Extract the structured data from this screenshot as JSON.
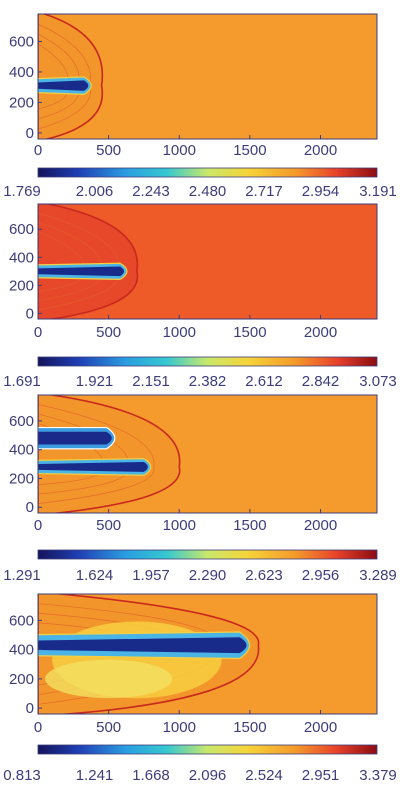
{
  "chart_data": [
    {
      "type": "heatmap",
      "panel": 1,
      "x_ticks": [
        "0",
        "500",
        "1000",
        "1500",
        "2000"
      ],
      "y_ticks": [
        "0",
        "200",
        "400",
        "600"
      ],
      "xlim": [
        0,
        2400
      ],
      "ylim": [
        -40,
        780
      ],
      "colorbar_ticks": [
        "1.769",
        "2.006",
        "2.243",
        "2.480",
        "2.717",
        "2.954",
        "3.191"
      ],
      "background_color": "#f59a2c",
      "jet": {
        "x_tip": 400,
        "y_center": 310
      },
      "shock_front_x": 450
    },
    {
      "type": "heatmap",
      "panel": 2,
      "x_ticks": [
        "0",
        "500",
        "1000",
        "1500",
        "2000"
      ],
      "y_ticks": [
        "0",
        "200",
        "400",
        "600"
      ],
      "xlim": [
        0,
        2400
      ],
      "ylim": [
        -40,
        780
      ],
      "colorbar_ticks": [
        "1.691",
        "1.921",
        "2.151",
        "2.382",
        "2.612",
        "2.842",
        "3.073"
      ],
      "background_color": "#ee5a28",
      "jet": {
        "x_tip": 650,
        "y_center": 300
      },
      "shock_front_x": 700
    },
    {
      "type": "heatmap",
      "panel": 3,
      "x_ticks": [
        "0",
        "500",
        "1000",
        "1500",
        "2000"
      ],
      "y_ticks": [
        "0",
        "200",
        "400",
        "600"
      ],
      "xlim": [
        0,
        2400
      ],
      "ylim": [
        -40,
        780
      ],
      "colorbar_ticks": [
        "1.291",
        "1.624",
        "1.957",
        "2.290",
        "2.623",
        "2.956",
        "3.289"
      ],
      "background_color": "#f59a2c",
      "jet": {
        "x_tip": 820,
        "y_center": 280
      },
      "shock_front_x": 1000
    },
    {
      "type": "heatmap",
      "panel": 4,
      "x_ticks": [
        "0",
        "500",
        "1000",
        "1500",
        "2000"
      ],
      "y_ticks": [
        "0",
        "200",
        "400",
        "600"
      ],
      "xlim": [
        0,
        2400
      ],
      "ylim": [
        -40,
        780
      ],
      "colorbar_ticks": [
        "0.813",
        "1.241",
        "1.668",
        "2.096",
        "2.524",
        "2.951",
        "3.379"
      ],
      "background_color": "#f59a2c",
      "jet": {
        "x_tip": 1540,
        "y_center": 430
      },
      "shock_front_x": 1560
    }
  ]
}
